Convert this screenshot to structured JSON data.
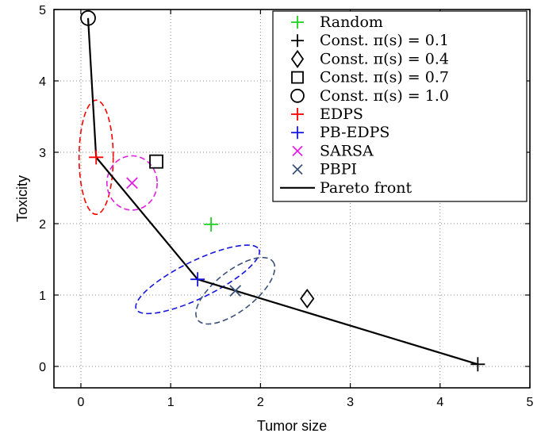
{
  "chart_data": {
    "type": "scatter",
    "xlabel": "Tumor size",
    "ylabel": "Toxicity",
    "xlim": [
      -0.3,
      5
    ],
    "ylim": [
      -0.3,
      5
    ],
    "xticks": [
      0,
      1,
      2,
      3,
      4,
      5
    ],
    "yticks": [
      0,
      1,
      2,
      3,
      4,
      5
    ],
    "grid": true,
    "legend_position": "top-right",
    "series": [
      {
        "name": "Random",
        "marker": "plus",
        "color": "#1fd21f",
        "points": [
          [
            1.45,
            1.99
          ]
        ]
      },
      {
        "name": "Const. π(s) = 0.1",
        "marker": "plus",
        "color": "#000000",
        "points": [
          [
            4.42,
            0.03
          ]
        ]
      },
      {
        "name": "Const. π(s) = 0.4",
        "marker": "diamond",
        "color": "#000000",
        "points": [
          [
            2.52,
            0.95
          ]
        ]
      },
      {
        "name": "Const. π(s) = 0.7",
        "marker": "square",
        "color": "#000000",
        "points": [
          [
            0.84,
            2.87
          ]
        ]
      },
      {
        "name": "Const. π(s) = 1.0",
        "marker": "circle",
        "color": "#000000",
        "points": [
          [
            0.08,
            4.88
          ]
        ]
      },
      {
        "name": "EDPS",
        "marker": "plus",
        "color": "#ff0000",
        "points": [
          [
            0.17,
            2.93
          ]
        ],
        "ellipse": {
          "cx": 0.17,
          "cy": 2.93,
          "rx": 0.19,
          "ry": 0.8,
          "angle": 0
        }
      },
      {
        "name": "PB-EDPS",
        "marker": "plus",
        "color": "#1515e0",
        "points": [
          [
            1.3,
            1.22
          ]
        ],
        "ellipse": {
          "cx": 1.3,
          "cy": 1.22,
          "rx": 0.76,
          "ry": 0.26,
          "angle": -26
        }
      },
      {
        "name": "SARSA",
        "marker": "x",
        "color": "#e020e0",
        "points": [
          [
            0.57,
            2.57
          ]
        ],
        "ellipse": {
          "cx": 0.57,
          "cy": 2.57,
          "rx": 0.28,
          "ry": 0.38,
          "angle": 0
        }
      },
      {
        "name": "PBPI",
        "marker": "x",
        "color": "#3b5278",
        "points": [
          [
            1.72,
            1.06
          ]
        ],
        "ellipse": {
          "cx": 1.72,
          "cy": 1.06,
          "rx": 0.53,
          "ry": 0.28,
          "angle": -38
        }
      },
      {
        "name": "Pareto front",
        "marker": "line",
        "color": "#000000",
        "points": [
          [
            0.08,
            4.88
          ],
          [
            0.17,
            2.93
          ],
          [
            1.3,
            1.22
          ],
          [
            1.72,
            1.06
          ],
          [
            4.42,
            0.03
          ]
        ]
      }
    ],
    "legend_entries": [
      {
        "label": "Random",
        "marker": "plus",
        "color": "#1fd21f"
      },
      {
        "label": "Const. π(s) = 0.1",
        "marker": "plus",
        "color": "#000000"
      },
      {
        "label": "Const. π(s) = 0.4",
        "marker": "diamond",
        "color": "#000000"
      },
      {
        "label": "Const. π(s) = 0.7",
        "marker": "square",
        "color": "#000000"
      },
      {
        "label": "Const. π(s) = 1.0",
        "marker": "circle",
        "color": "#000000"
      },
      {
        "label": "EDPS",
        "marker": "plus",
        "color": "#ff0000"
      },
      {
        "label": "PB-EDPS",
        "marker": "plus",
        "color": "#1515e0"
      },
      {
        "label": "SARSA",
        "marker": "x",
        "color": "#e020e0"
      },
      {
        "label": "PBPI",
        "marker": "x",
        "color": "#3b5278"
      },
      {
        "label": "Pareto front",
        "marker": "line",
        "color": "#000000"
      }
    ]
  }
}
